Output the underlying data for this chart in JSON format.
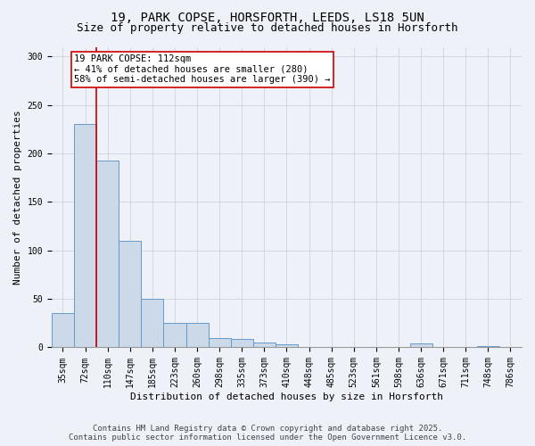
{
  "title_line1": "19, PARK COPSE, HORSFORTH, LEEDS, LS18 5UN",
  "title_line2": "Size of property relative to detached houses in Horsforth",
  "xlabel": "Distribution of detached houses by size in Horsforth",
  "ylabel": "Number of detached properties",
  "categories": [
    "35sqm",
    "72sqm",
    "110sqm",
    "147sqm",
    "185sqm",
    "223sqm",
    "260sqm",
    "298sqm",
    "335sqm",
    "373sqm",
    "410sqm",
    "448sqm",
    "485sqm",
    "523sqm",
    "561sqm",
    "598sqm",
    "636sqm",
    "671sqm",
    "711sqm",
    "748sqm",
    "786sqm"
  ],
  "values": [
    35,
    230,
    193,
    110,
    50,
    25,
    25,
    10,
    9,
    5,
    3,
    0,
    0,
    0,
    0,
    0,
    4,
    0,
    0,
    1,
    0
  ],
  "bar_color": "#ccd9e8",
  "bar_edge_color": "#6699cc",
  "vline_index": 2,
  "vline_color": "#cc0000",
  "annotation_text": "19 PARK COPSE: 112sqm\n← 41% of detached houses are smaller (280)\n58% of semi-detached houses are larger (390) →",
  "annotation_box_color": "white",
  "annotation_box_edge": "#cc0000",
  "ylim": [
    0,
    310
  ],
  "yticks": [
    0,
    50,
    100,
    150,
    200,
    250,
    300
  ],
  "footer_line1": "Contains HM Land Registry data © Crown copyright and database right 2025.",
  "footer_line2": "Contains public sector information licensed under the Open Government Licence v3.0.",
  "background_color": "#eef2f8",
  "plot_bg_color": "#eef2f8",
  "title_fontsize": 10,
  "subtitle_fontsize": 9,
  "axis_label_fontsize": 8,
  "tick_fontsize": 7,
  "footer_fontsize": 6.5,
  "annotation_fontsize": 7.5
}
